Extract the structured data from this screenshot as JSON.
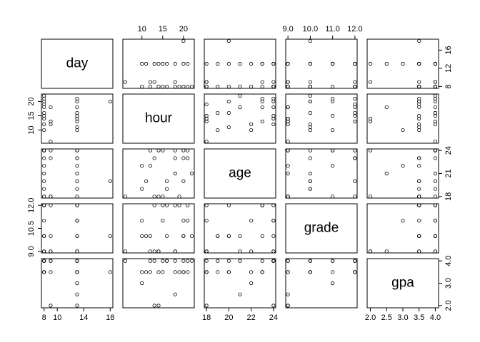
{
  "chart_data": {
    "type": "scatter-matrix",
    "variables": [
      {
        "name": "day",
        "lim": [
          7.6,
          18.4
        ],
        "xticks": [
          8,
          10,
          14,
          18
        ],
        "yticks": [
          8,
          12,
          16
        ],
        "values": [
          8,
          8,
          8,
          8,
          8,
          8,
          8,
          8,
          9,
          9,
          9,
          9,
          13,
          13,
          13,
          13,
          13,
          13,
          13,
          13,
          13,
          18,
          8,
          8
        ]
      },
      {
        "name": "hour",
        "lim": [
          5.4,
          22.6
        ],
        "xticks": [
          10,
          15,
          20
        ],
        "yticks": [
          10,
          15,
          20
        ],
        "values": [
          18,
          20,
          16,
          14,
          22,
          12,
          15,
          10,
          13,
          12,
          18,
          6,
          20,
          21,
          18,
          16,
          15,
          14,
          13,
          11,
          10,
          20,
          21,
          19
        ]
      },
      {
        "name": "age",
        "lim": [
          17.8,
          24.2
        ],
        "xticks": [
          18,
          20,
          22,
          24
        ],
        "yticks": [
          18,
          21,
          24
        ],
        "values": [
          24,
          23,
          20,
          18,
          21,
          22,
          24,
          19,
          18,
          24,
          23,
          18,
          24,
          23,
          21,
          19,
          18,
          24,
          23,
          20,
          22,
          20,
          24,
          18
        ]
      },
      {
        "name": "grade",
        "lim": [
          8.9,
          12.1
        ],
        "xticks": [
          {
            "value": 9,
            "label": "9.0"
          },
          {
            "value": 10,
            "label": "10.0"
          },
          {
            "value": 11,
            "label": "11.0"
          },
          {
            "value": 12,
            "label": "12.0"
          }
        ],
        "yticks": [
          {
            "value": 9,
            "label": "9.0"
          },
          10.5,
          {
            "value": 12,
            "label": "12.0"
          }
        ],
        "values": [
          9,
          10,
          12,
          9,
          10,
          9,
          12,
          10,
          9,
          10,
          12,
          9,
          11,
          12,
          9,
          10,
          11,
          9,
          12,
          10,
          11,
          10,
          11,
          12
        ]
      },
      {
        "name": "gpa",
        "lim": [
          1.9,
          4.1
        ],
        "xticks": [
          {
            "value": 2,
            "label": "2.0"
          },
          2.5,
          {
            "value": 3,
            "label": "3.0"
          },
          3.5,
          {
            "value": 4,
            "label": "4.0"
          }
        ],
        "yticks": [
          {
            "value": 2,
            "label": "2.0"
          },
          {
            "value": 3,
            "label": "3.0"
          },
          {
            "value": 4,
            "label": "4.0"
          }
        ],
        "values": [
          4.0,
          3.5,
          4.0,
          3.5,
          4.0,
          3.5,
          4.0,
          3.5,
          2.0,
          4.0,
          3.5,
          4.0,
          4.0,
          3.5,
          2.5,
          4.0,
          3.5,
          2.0,
          4.0,
          3.5,
          3.0,
          3.5,
          4.0,
          3.5
        ]
      }
    ]
  }
}
